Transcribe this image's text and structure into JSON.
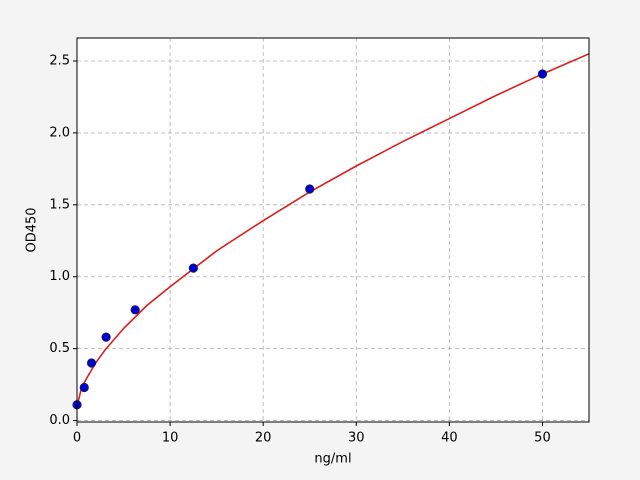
{
  "chart_data": {
    "type": "scatter",
    "x_label": "ng/ml",
    "y_label": "OD450",
    "xlim": [
      0,
      55
    ],
    "ylim": [
      -0.01,
      2.66
    ],
    "xticks": [
      0,
      10,
      20,
      30,
      40,
      50
    ],
    "yticks": [
      {
        "value": 0,
        "label": "0.0"
      },
      {
        "value": 0.5,
        "label": "0.5"
      },
      {
        "value": 1,
        "label": "1.0"
      },
      {
        "value": 1.5,
        "label": "1.5"
      },
      {
        "value": 2,
        "label": "2.0"
      },
      {
        "value": 2.5,
        "label": "2.5"
      }
    ],
    "grid": true,
    "series": [
      {
        "type": "line",
        "color": "#dd1c1c",
        "x": [
          0,
          0.5,
          1,
          2,
          3,
          5,
          7.5,
          10,
          15,
          20,
          25,
          30,
          35,
          40,
          45,
          50,
          55
        ],
        "values": [
          0.1,
          0.23,
          0.29,
          0.4,
          0.49,
          0.64,
          0.8,
          0.93,
          1.18,
          1.39,
          1.59,
          1.77,
          1.94,
          2.1,
          2.26,
          2.41,
          2.55
        ]
      },
      {
        "type": "scatter",
        "color": "#0000cc",
        "x": [
          0,
          0.78,
          1.56,
          3.125,
          6.25,
          12.5,
          25,
          50
        ],
        "values": [
          0.11,
          0.23,
          0.4,
          0.58,
          0.77,
          1.06,
          1.61,
          2.41
        ]
      }
    ]
  }
}
